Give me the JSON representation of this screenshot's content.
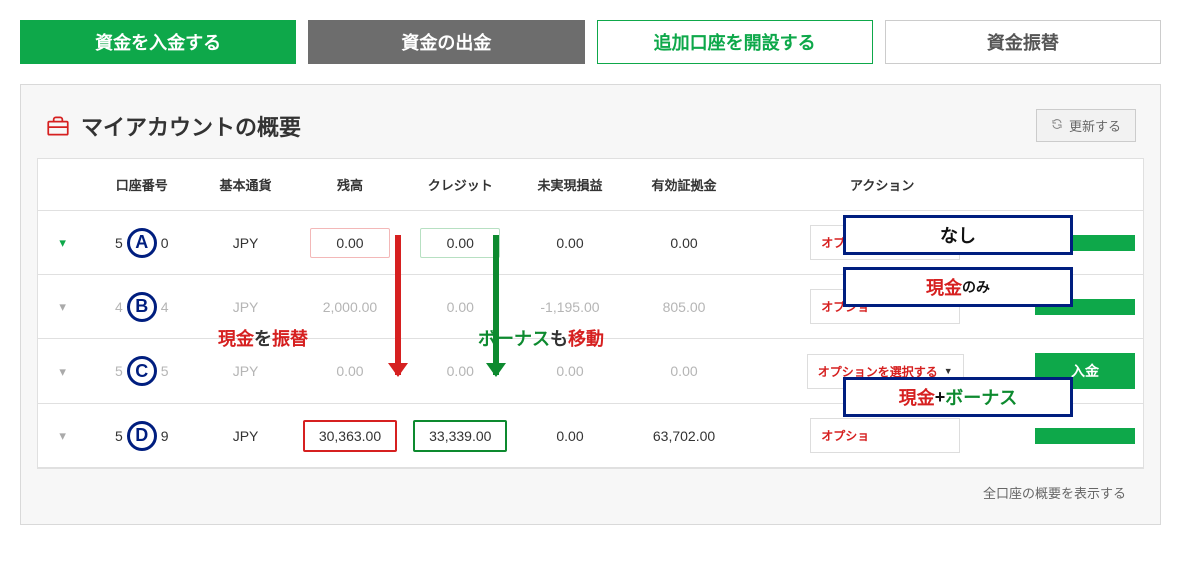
{
  "topButtons": {
    "deposit": "資金を入金する",
    "withdraw": "資金の出金",
    "openAccount": "追加口座を開設する",
    "transfer": "資金振替"
  },
  "panel": {
    "title": "マイアカウントの概要",
    "refresh": "更新する"
  },
  "columns": {
    "account": "口座番号",
    "currency": "基本通貨",
    "balance": "残高",
    "credit": "クレジット",
    "upl": "未実現損益",
    "margin": "有効証拠金",
    "action": "アクション"
  },
  "rows": [
    {
      "letter": "A",
      "prefix": "5",
      "suffix": "0",
      "currency": "JPY",
      "balance": "0.00",
      "credit": "0.00",
      "upl": "0.00",
      "margin": "0.00",
      "balanceBox": "pink",
      "creditBox": "lightgreen",
      "expanded": true,
      "faded": false
    },
    {
      "letter": "B",
      "prefix": "4",
      "suffix": "4",
      "currency": "JPY",
      "balance": "2,000.00",
      "credit": "0.00",
      "upl": "-1,195.00",
      "margin": "805.00",
      "expanded": false,
      "faded": true
    },
    {
      "letter": "C",
      "prefix": "5",
      "suffix": "5",
      "currency": "JPY",
      "balance": "0.00",
      "credit": "0.00",
      "upl": "0.00",
      "margin": "0.00",
      "expanded": false,
      "faded": true
    },
    {
      "letter": "D",
      "prefix": "5",
      "suffix": "9",
      "currency": "JPY",
      "balance": "30,363.00",
      "credit": "33,339.00",
      "upl": "0.00",
      "margin": "63,702.00",
      "balanceBox": "red",
      "creditBox": "green",
      "expanded": false,
      "faded": false
    }
  ],
  "actionSelect": "オプションを選択する",
  "actionSelectShort": "オプショ",
  "depositBtn": "入金",
  "footerLink": "全口座の概要を表示する",
  "annotations": {
    "cashTransfer": {
      "red": "現金",
      "dark1": "を",
      "dark2": "振替"
    },
    "bonusMove": {
      "green": "ボーナス",
      "dark1": "も",
      "red": "移動"
    },
    "badgeNone": "なし",
    "badgeCash": {
      "red": "現金",
      "small": "のみ"
    },
    "badgeCashBonus": {
      "red": "現金",
      "plus": " + ",
      "green": "ボーナス"
    }
  },
  "colors": {
    "green": "#0ea84a",
    "red": "#d62020",
    "navy": "#001e7f",
    "darkGreen": "#0d8a2f"
  }
}
